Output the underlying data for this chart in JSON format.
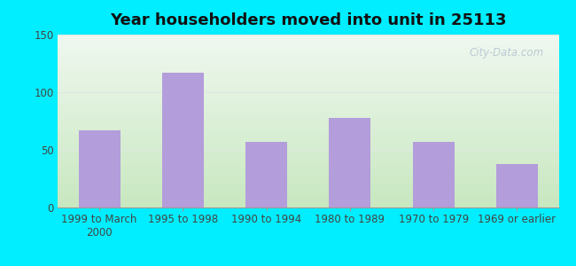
{
  "title": "Year householders moved into unit in 25113",
  "categories": [
    "1999 to March\n2000",
    "1995 to 1998",
    "1990 to 1994",
    "1980 to 1989",
    "1970 to 1979",
    "1969 or earlier"
  ],
  "values": [
    67,
    117,
    57,
    78,
    57,
    38
  ],
  "bar_color": "#b39ddb",
  "ylim": [
    0,
    150
  ],
  "yticks": [
    0,
    50,
    100,
    150
  ],
  "background_outer": "#00eeff",
  "gradient_top": "#f0f8f0",
  "gradient_bottom": "#c8e8c0",
  "grid_color": "#e0e8e0",
  "watermark": "City-Data.com",
  "title_fontsize": 13,
  "tick_fontsize": 8.5
}
